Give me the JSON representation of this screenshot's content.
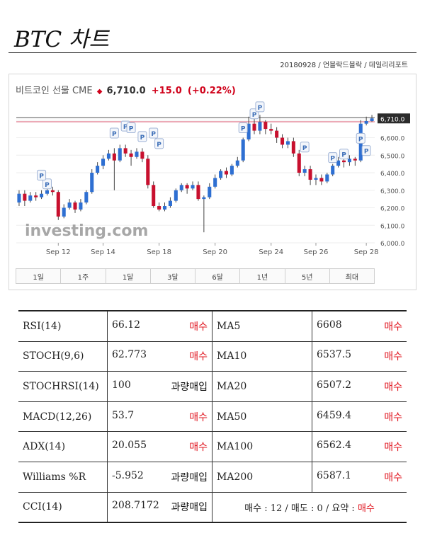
{
  "header": {
    "title": "BTC 차트",
    "subline": "20180928 / 언블락드블락 / 데일리리포트"
  },
  "chart_data": {
    "type": "candlestick",
    "title": "비트코인 선물 CME",
    "last_price": "6,710.0",
    "change": "+15.0",
    "change_pct": "(+0.22%)",
    "y_ticks": [
      "6,000.0",
      "6,100.0",
      "6,200.0",
      "6,300.0",
      "6,400.0",
      "6,500.0",
      "6,600.0",
      "6,710.0"
    ],
    "x_ticks": [
      "Sep 12",
      "Sep 14",
      "Sep 18",
      "Sep 20",
      "Sep 24",
      "Sep 26",
      "Sep 28"
    ],
    "ylim": [
      6000,
      6800
    ],
    "watermark": "investing.com",
    "candles": [
      [
        6230,
        6280,
        6210,
        6300
      ],
      [
        6280,
        6240,
        6210,
        6300
      ],
      [
        6240,
        6270,
        6230,
        6290
      ],
      [
        6270,
        6260,
        6240,
        6290
      ],
      [
        6260,
        6280,
        6250,
        6300
      ],
      [
        6280,
        6300,
        6270,
        6330
      ],
      [
        6300,
        6290,
        6270,
        6320
      ],
      [
        6290,
        6150,
        6130,
        6300
      ],
      [
        6150,
        6200,
        6140,
        6220
      ],
      [
        6200,
        6230,
        6190,
        6250
      ],
      [
        6230,
        6190,
        6170,
        6240
      ],
      [
        6190,
        6230,
        6180,
        6250
      ],
      [
        6230,
        6290,
        6220,
        6300
      ],
      [
        6290,
        6400,
        6280,
        6420
      ],
      [
        6400,
        6440,
        6390,
        6460
      ],
      [
        6440,
        6480,
        6420,
        6500
      ],
      [
        6480,
        6510,
        6470,
        6530
      ],
      [
        6510,
        6470,
        6300,
        6540
      ],
      [
        6470,
        6540,
        6460,
        6560
      ],
      [
        6540,
        6510,
        6490,
        6560
      ],
      [
        6510,
        6490,
        6440,
        6530
      ],
      [
        6490,
        6520,
        6480,
        6540
      ],
      [
        6520,
        6480,
        6460,
        6540
      ],
      [
        6480,
        6330,
        6310,
        6500
      ],
      [
        6330,
        6210,
        6200,
        6350
      ],
      [
        6210,
        6190,
        6180,
        6230
      ],
      [
        6190,
        6210,
        6180,
        6230
      ],
      [
        6210,
        6240,
        6200,
        6260
      ],
      [
        6240,
        6300,
        6230,
        6310
      ],
      [
        6300,
        6330,
        6290,
        6340
      ],
      [
        6330,
        6310,
        6280,
        6340
      ],
      [
        6310,
        6330,
        6300,
        6350
      ],
      [
        6330,
        6250,
        6240,
        6350
      ],
      [
        6250,
        6260,
        6060,
        6270
      ],
      [
        6260,
        6320,
        6250,
        6340
      ],
      [
        6320,
        6370,
        6310,
        6390
      ],
      [
        6370,
        6410,
        6360,
        6420
      ],
      [
        6410,
        6390,
        6370,
        6430
      ],
      [
        6390,
        6440,
        6380,
        6450
      ],
      [
        6440,
        6470,
        6430,
        6490
      ],
      [
        6470,
        6590,
        6460,
        6600
      ],
      [
        6590,
        6680,
        6580,
        6720
      ],
      [
        6680,
        6640,
        6620,
        6710
      ],
      [
        6640,
        6690,
        6620,
        6730
      ],
      [
        6690,
        6650,
        6620,
        6700
      ],
      [
        6650,
        6640,
        6620,
        6680
      ],
      [
        6640,
        6600,
        6570,
        6660
      ],
      [
        6600,
        6560,
        6540,
        6620
      ],
      [
        6560,
        6580,
        6540,
        6600
      ],
      [
        6580,
        6510,
        6490,
        6600
      ],
      [
        6510,
        6400,
        6380,
        6530
      ],
      [
        6400,
        6420,
        6380,
        6440
      ],
      [
        6420,
        6360,
        6330,
        6440
      ],
      [
        6360,
        6370,
        6330,
        6390
      ],
      [
        6370,
        6350,
        6330,
        6390
      ],
      [
        6350,
        6390,
        6340,
        6400
      ],
      [
        6390,
        6440,
        6380,
        6450
      ],
      [
        6440,
        6470,
        6430,
        6490
      ],
      [
        6470,
        6460,
        6430,
        6490
      ],
      [
        6460,
        6480,
        6440,
        6500
      ],
      [
        6480,
        6470,
        6440,
        6490
      ],
      [
        6470,
        6680,
        6460,
        6700
      ],
      [
        6680,
        6695,
        6670,
        6720
      ],
      [
        6695,
        6710,
        6690,
        6730
      ]
    ],
    "p_markers": [
      [
        5,
        6300
      ],
      [
        4,
        6350
      ],
      [
        17,
        6590
      ],
      [
        19,
        6630
      ],
      [
        20,
        6620
      ],
      [
        22,
        6570
      ],
      [
        24,
        6590
      ],
      [
        25,
        6530
      ],
      [
        40,
        6620
      ],
      [
        42,
        6700
      ],
      [
        43,
        6740
      ],
      [
        51,
        6510
      ],
      [
        56,
        6450
      ],
      [
        58,
        6470
      ],
      [
        61,
        6560
      ],
      [
        62,
        6490
      ]
    ]
  },
  "range_buttons": [
    "1일",
    "1주",
    "1달",
    "3달",
    "6달",
    "1년",
    "5년",
    "최대"
  ],
  "indicators": {
    "rows": [
      {
        "name": "RSI(14)",
        "value": "66.12",
        "action": "매수",
        "action_type": "buy",
        "ma": "MA5",
        "ma_value": "6608",
        "ma_action": "매수"
      },
      {
        "name": "STOCH(9,6)",
        "value": "62.773",
        "action": "매수",
        "action_type": "buy",
        "ma": "MA10",
        "ma_value": "6537.5",
        "ma_action": "매수"
      },
      {
        "name": "STOCHRSI(14)",
        "value": "100",
        "action": "과량매입",
        "action_type": "over",
        "ma": "MA20",
        "ma_value": "6507.2",
        "ma_action": "매수"
      },
      {
        "name": "MACD(12,26)",
        "value": "53.7",
        "action": "매수",
        "action_type": "buy",
        "ma": "MA50",
        "ma_value": "6459.4",
        "ma_action": "매수"
      },
      {
        "name": "ADX(14)",
        "value": "20.055",
        "action": "매수",
        "action_type": "buy",
        "ma": "MA100",
        "ma_value": "6562.4",
        "ma_action": "매수"
      },
      {
        "name": "Williams %R",
        "value": "-5.952",
        "action": "과량매입",
        "action_type": "over",
        "ma": "MA200",
        "ma_value": "6587.1",
        "ma_action": "매수"
      }
    ],
    "last_row": {
      "name": "CCI(14)",
      "value": "208.7172",
      "action": "과량매입",
      "summary_prefix": "매수 : 12 / 매도 : 0 / 요약 : ",
      "summary_result": "매수"
    }
  },
  "colors": {
    "up": "#2e6fd2",
    "down": "#c8102e",
    "buy": "#e0141e"
  }
}
